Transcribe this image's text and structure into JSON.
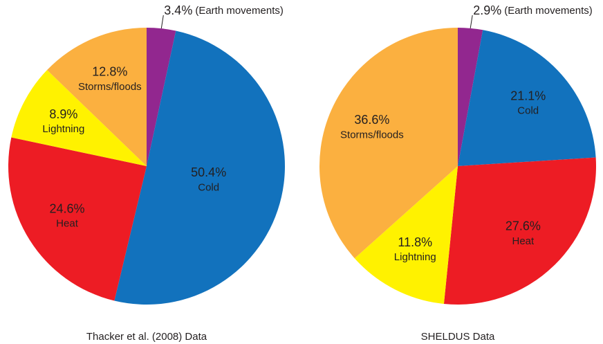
{
  "chart_data": [
    {
      "type": "pie",
      "title": "Thacker et al. (2008) Data",
      "categories": [
        "(Earth movements)",
        "Cold",
        "Heat",
        "Lightning",
        "Storms/floods"
      ],
      "values": [
        3.4,
        50.4,
        24.6,
        8.9,
        12.8
      ],
      "value_labels": [
        "3.4%",
        "50.4%",
        "24.6%",
        "8.9%",
        "12.8%"
      ],
      "colors": [
        "#92278f",
        "#1272bd",
        "#ed1c24",
        "#fff200",
        "#fbb040"
      ]
    },
    {
      "type": "pie",
      "title": "SHELDUS Data",
      "categories": [
        "(Earth movements)",
        "Cold",
        "Heat",
        "Lightning",
        "Storms/floods"
      ],
      "values": [
        2.9,
        21.1,
        27.6,
        11.8,
        36.6
      ],
      "value_labels": [
        "2.9%",
        "21.1%",
        "27.6%",
        "11.8%",
        "36.6%"
      ],
      "colors": [
        "#92278f",
        "#1272bd",
        "#ed1c24",
        "#fff200",
        "#fbb040"
      ]
    }
  ]
}
